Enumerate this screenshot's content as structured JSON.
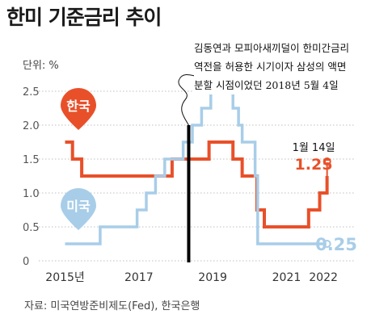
{
  "page": {
    "title": "한미 기준금리 추이",
    "unit_label": "단위: %",
    "source": "자료: 미국연방준비제도(Fed), 한국은행",
    "annotation": {
      "lines": [
        "김동연과 모피아새끼덜이 한미간금리",
        "역전을 허용한 시기이자 삼성의 액면",
        "분할 시점이었던 2018년 5월 4일"
      ]
    }
  },
  "colors": {
    "korea": "#e8502a",
    "us": "#a8cde8",
    "axis_text": "#555555",
    "grid": "#bfbfbf",
    "marker_line": "#000000"
  },
  "chart_data": {
    "type": "line",
    "ylim": [
      0,
      2.5
    ],
    "yticks": [
      0,
      0.5,
      1.0,
      1.5,
      2.0,
      2.5
    ],
    "ytick_labels": [
      "0",
      "0.5",
      "1.0",
      "1.5",
      "2.0",
      "2.5"
    ],
    "xlim": [
      2014.55,
      2023.05
    ],
    "xticks": [
      {
        "value": 2015,
        "label": "2015년"
      },
      {
        "value": 2017,
        "label": "2017"
      },
      {
        "value": 2019,
        "label": "2019"
      },
      {
        "value": 2021,
        "label": "2021"
      },
      {
        "value": 2022,
        "label": "2022"
      }
    ],
    "series": [
      {
        "name": "한국",
        "color_key": "korea",
        "step_points": [
          [
            2015.0,
            1.75
          ],
          [
            2015.2,
            1.75
          ],
          [
            2015.2,
            1.5
          ],
          [
            2015.45,
            1.5
          ],
          [
            2015.45,
            1.25
          ],
          [
            2016.5,
            1.25
          ],
          [
            2016.5,
            1.25
          ],
          [
            2017.9,
            1.25
          ],
          [
            2017.9,
            1.5
          ],
          [
            2018.9,
            1.5
          ],
          [
            2018.9,
            1.75
          ],
          [
            2019.55,
            1.75
          ],
          [
            2019.55,
            1.5
          ],
          [
            2019.8,
            1.5
          ],
          [
            2019.8,
            1.25
          ],
          [
            2020.2,
            1.25
          ],
          [
            2020.2,
            0.75
          ],
          [
            2020.4,
            0.75
          ],
          [
            2020.4,
            0.5
          ],
          [
            2021.6,
            0.5
          ],
          [
            2021.6,
            0.75
          ],
          [
            2021.9,
            0.75
          ],
          [
            2021.9,
            1.0
          ],
          [
            2022.1,
            1.0
          ],
          [
            2022.1,
            1.25
          ]
        ],
        "end_label": "1.25",
        "end_date_label": "1월 14일",
        "flag_label": "한국",
        "flag_anchor": [
          2015.0,
          1.75
        ]
      },
      {
        "name": "미국",
        "color_key": "us",
        "step_points": [
          [
            2015.0,
            0.25
          ],
          [
            2015.95,
            0.25
          ],
          [
            2015.95,
            0.5
          ],
          [
            2016.95,
            0.5
          ],
          [
            2016.95,
            0.75
          ],
          [
            2017.2,
            0.75
          ],
          [
            2017.2,
            1.0
          ],
          [
            2017.45,
            1.0
          ],
          [
            2017.45,
            1.25
          ],
          [
            2017.7,
            1.25
          ],
          [
            2017.7,
            1.5
          ],
          [
            2018.2,
            1.5
          ],
          [
            2018.2,
            1.75
          ],
          [
            2018.45,
            1.75
          ],
          [
            2018.45,
            2.0
          ],
          [
            2018.7,
            2.0
          ],
          [
            2018.7,
            2.25
          ],
          [
            2018.95,
            2.25
          ],
          [
            2018.95,
            2.5
          ],
          [
            2019.55,
            2.5
          ],
          [
            2019.55,
            2.25
          ],
          [
            2019.7,
            2.25
          ],
          [
            2019.7,
            2.0
          ],
          [
            2019.8,
            2.0
          ],
          [
            2019.8,
            1.75
          ],
          [
            2020.15,
            1.75
          ],
          [
            2020.15,
            1.25
          ],
          [
            2020.22,
            1.25
          ],
          [
            2020.22,
            0.25
          ],
          [
            2022.1,
            0.25
          ]
        ],
        "end_label": "0.25",
        "flag_label": "미국",
        "flag_anchor": [
          2015.0,
          0.25
        ]
      }
    ],
    "event_marker": {
      "x": 2018.35
    }
  }
}
